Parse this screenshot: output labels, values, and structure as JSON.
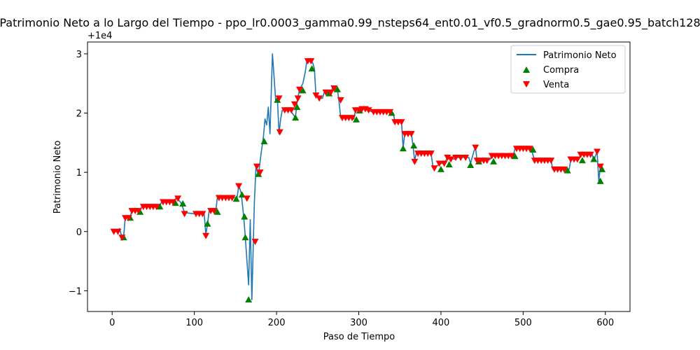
{
  "chart_data": {
    "type": "line",
    "title": "Patrimonio Neto a lo Largo del Tiempo - ppo_lr0.0003_gamma0.99_nsteps64_ent0.01_vf0.5_gradnorm0.5_gae0.95_batch128",
    "xlabel": "Paso de Tiempo",
    "ylabel": "Patrimonio Neto",
    "y_offset_label": "+1e4",
    "xlim": [
      -30,
      630
    ],
    "ylim": [
      -1.35,
      3.2
    ],
    "x_ticks": [
      0,
      100,
      200,
      300,
      400,
      500,
      600
    ],
    "x_tick_labels": [
      "0",
      "100",
      "200",
      "300",
      "400",
      "500",
      "600"
    ],
    "y_ticks": [
      -1,
      0,
      1,
      2,
      3
    ],
    "y_tick_labels": [
      "−1",
      "0",
      "1",
      "2",
      "3"
    ],
    "grid": false,
    "legend_position": "top-right",
    "colors": {
      "line": "#1f77b4",
      "buy": "#008000",
      "sell": "#ff0000"
    },
    "series": [
      {
        "name": "Patrimonio Neto",
        "kind": "line",
        "points": [
          [
            0,
            0.0
          ],
          [
            6,
            0.0
          ],
          [
            9,
            0.05
          ],
          [
            11,
            -0.05
          ],
          [
            14,
            -0.08
          ],
          [
            16,
            0.25
          ],
          [
            22,
            0.25
          ],
          [
            24,
            0.35
          ],
          [
            34,
            0.35
          ],
          [
            36,
            0.42
          ],
          [
            58,
            0.42
          ],
          [
            60,
            0.5
          ],
          [
            75,
            0.5
          ],
          [
            78,
            0.58
          ],
          [
            84,
            0.48
          ],
          [
            88,
            0.32
          ],
          [
            100,
            0.3
          ],
          [
            112,
            0.3
          ],
          [
            114,
            -0.05
          ],
          [
            116,
            0.12
          ],
          [
            118,
            0.35
          ],
          [
            126,
            0.35
          ],
          [
            128,
            0.57
          ],
          [
            152,
            0.57
          ],
          [
            154,
            0.78
          ],
          [
            157,
            0.65
          ],
          [
            160,
            0.25
          ],
          [
            162,
            -0.1
          ],
          [
            164,
            -0.5
          ],
          [
            166,
            -0.9
          ],
          [
            168,
            0.2
          ],
          [
            170,
            -1.15
          ],
          [
            173,
            0.5
          ],
          [
            175,
            1.1
          ],
          [
            178,
            0.95
          ],
          [
            181,
            1.3
          ],
          [
            184,
            1.6
          ],
          [
            186,
            1.9
          ],
          [
            188,
            1.8
          ],
          [
            190,
            2.1
          ],
          [
            192,
            1.65
          ],
          [
            195,
            3.0
          ],
          [
            197,
            2.6
          ],
          [
            199,
            2.2
          ],
          [
            201,
            2.25
          ],
          [
            203,
            1.65
          ],
          [
            205,
            1.9
          ],
          [
            207,
            2.05
          ],
          [
            217,
            2.05
          ],
          [
            219,
            2.0
          ],
          [
            223,
            1.92
          ],
          [
            225,
            2.2
          ],
          [
            228,
            2.4
          ],
          [
            232,
            2.5
          ],
          [
            235,
            2.7
          ],
          [
            237,
            2.9
          ],
          [
            244,
            2.85
          ],
          [
            246,
            2.75
          ],
          [
            248,
            2.3
          ],
          [
            252,
            2.25
          ],
          [
            256,
            2.25
          ],
          [
            258,
            2.35
          ],
          [
            266,
            2.35
          ],
          [
            268,
            2.42
          ],
          [
            274,
            2.4
          ],
          [
            276,
            2.2
          ],
          [
            278,
            1.92
          ],
          [
            292,
            1.92
          ],
          [
            294,
            1.9
          ],
          [
            296,
            2.05
          ],
          [
            302,
            2.05
          ],
          [
            304,
            2.07
          ],
          [
            312,
            2.05
          ],
          [
            316,
            2.02
          ],
          [
            340,
            2.02
          ],
          [
            342,
            2.0
          ],
          [
            344,
            1.85
          ],
          [
            352,
            1.85
          ],
          [
            354,
            1.42
          ],
          [
            356,
            1.65
          ],
          [
            364,
            1.65
          ],
          [
            366,
            1.45
          ],
          [
            368,
            1.2
          ],
          [
            370,
            1.32
          ],
          [
            388,
            1.32
          ],
          [
            390,
            1.12
          ],
          [
            392,
            1.07
          ],
          [
            394,
            1.1
          ],
          [
            400,
            1.15
          ],
          [
            404,
            1.15
          ],
          [
            408,
            1.25
          ],
          [
            416,
            1.22
          ],
          [
            420,
            1.25
          ],
          [
            434,
            1.25
          ],
          [
            436,
            1.15
          ],
          [
            440,
            1.35
          ],
          [
            442,
            1.42
          ],
          [
            444,
            1.2
          ],
          [
            456,
            1.2
          ],
          [
            460,
            1.22
          ],
          [
            462,
            1.28
          ],
          [
            488,
            1.28
          ],
          [
            490,
            1.4
          ],
          [
            506,
            1.4
          ],
          [
            510,
            1.38
          ],
          [
            514,
            1.2
          ],
          [
            534,
            1.2
          ],
          [
            536,
            1.05
          ],
          [
            556,
            1.05
          ],
          [
            558,
            1.22
          ],
          [
            568,
            1.22
          ],
          [
            570,
            1.3
          ],
          [
            584,
            1.3
          ],
          [
            586,
            1.2
          ],
          [
            590,
            1.35
          ],
          [
            592,
            0.85
          ],
          [
            594,
            1.1
          ],
          [
            596,
            1.05
          ]
        ]
      },
      {
        "name": "Compra",
        "kind": "scatter",
        "marker": "triangle-up",
        "points": [
          [
            14,
            -0.1
          ],
          [
            22,
            0.23
          ],
          [
            34,
            0.33
          ],
          [
            58,
            0.42
          ],
          [
            77,
            0.48
          ],
          [
            86,
            0.47
          ],
          [
            116,
            0.13
          ],
          [
            128,
            0.33
          ],
          [
            151,
            0.55
          ],
          [
            158,
            0.62
          ],
          [
            161,
            0.25
          ],
          [
            162,
            -0.1
          ],
          [
            166,
            -1.15
          ],
          [
            178,
            0.97
          ],
          [
            185,
            1.52
          ],
          [
            201,
            2.22
          ],
          [
            223,
            1.92
          ],
          [
            225,
            2.1
          ],
          [
            232,
            2.38
          ],
          [
            243,
            2.75
          ],
          [
            264,
            2.33
          ],
          [
            274,
            2.4
          ],
          [
            297,
            1.89
          ],
          [
            301,
            2.04
          ],
          [
            340,
            2.0
          ],
          [
            354,
            1.4
          ],
          [
            367,
            1.45
          ],
          [
            400,
            1.05
          ],
          [
            410,
            1.13
          ],
          [
            436,
            1.12
          ],
          [
            446,
            1.18
          ],
          [
            464,
            1.18
          ],
          [
            490,
            1.27
          ],
          [
            512,
            1.38
          ],
          [
            554,
            1.03
          ],
          [
            572,
            1.2
          ],
          [
            586,
            1.22
          ],
          [
            594,
            0.85
          ],
          [
            596,
            1.05
          ]
        ]
      },
      {
        "name": "Venta",
        "kind": "scatter",
        "marker": "triangle-down",
        "points": [
          [
            2,
            0.0
          ],
          [
            7,
            0.0
          ],
          [
            12,
            -0.1
          ],
          [
            16,
            0.23
          ],
          [
            20,
            0.23
          ],
          [
            24,
            0.35
          ],
          [
            28,
            0.35
          ],
          [
            32,
            0.35
          ],
          [
            38,
            0.42
          ],
          [
            42,
            0.42
          ],
          [
            46,
            0.42
          ],
          [
            50,
            0.42
          ],
          [
            54,
            0.42
          ],
          [
            62,
            0.5
          ],
          [
            66,
            0.5
          ],
          [
            70,
            0.5
          ],
          [
            74,
            0.5
          ],
          [
            80,
            0.56
          ],
          [
            88,
            0.3
          ],
          [
            102,
            0.3
          ],
          [
            106,
            0.3
          ],
          [
            110,
            0.3
          ],
          [
            114,
            -0.07
          ],
          [
            120,
            0.35
          ],
          [
            124,
            0.35
          ],
          [
            130,
            0.57
          ],
          [
            134,
            0.57
          ],
          [
            138,
            0.57
          ],
          [
            142,
            0.57
          ],
          [
            146,
            0.57
          ],
          [
            154,
            0.77
          ],
          [
            164,
            0.56
          ],
          [
            174,
            -0.17
          ],
          [
            176,
            1.1
          ],
          [
            180,
            1.0
          ],
          [
            203,
            2.25
          ],
          [
            204,
            1.68
          ],
          [
            210,
            2.05
          ],
          [
            214,
            2.05
          ],
          [
            218,
            2.05
          ],
          [
            222,
            2.15
          ],
          [
            226,
            2.25
          ],
          [
            228,
            2.4
          ],
          [
            238,
            2.88
          ],
          [
            242,
            2.88
          ],
          [
            248,
            2.3
          ],
          [
            252,
            2.25
          ],
          [
            260,
            2.35
          ],
          [
            266,
            2.35
          ],
          [
            270,
            2.42
          ],
          [
            278,
            2.22
          ],
          [
            280,
            1.92
          ],
          [
            284,
            1.92
          ],
          [
            288,
            1.92
          ],
          [
            292,
            1.92
          ],
          [
            296,
            2.05
          ],
          [
            300,
            2.05
          ],
          [
            304,
            2.07
          ],
          [
            308,
            2.07
          ],
          [
            312,
            2.05
          ],
          [
            318,
            2.02
          ],
          [
            322,
            2.02
          ],
          [
            326,
            2.02
          ],
          [
            330,
            2.02
          ],
          [
            334,
            2.02
          ],
          [
            338,
            2.02
          ],
          [
            344,
            1.85
          ],
          [
            348,
            1.85
          ],
          [
            352,
            1.85
          ],
          [
            356,
            1.65
          ],
          [
            360,
            1.65
          ],
          [
            364,
            1.65
          ],
          [
            368,
            1.18
          ],
          [
            372,
            1.32
          ],
          [
            376,
            1.32
          ],
          [
            380,
            1.32
          ],
          [
            384,
            1.32
          ],
          [
            388,
            1.32
          ],
          [
            392,
            1.07
          ],
          [
            398,
            1.15
          ],
          [
            404,
            1.15
          ],
          [
            408,
            1.25
          ],
          [
            412,
            1.22
          ],
          [
            418,
            1.25
          ],
          [
            424,
            1.25
          ],
          [
            430,
            1.25
          ],
          [
            442,
            1.42
          ],
          [
            444,
            1.2
          ],
          [
            448,
            1.2
          ],
          [
            452,
            1.2
          ],
          [
            456,
            1.2
          ],
          [
            462,
            1.28
          ],
          [
            466,
            1.28
          ],
          [
            470,
            1.28
          ],
          [
            474,
            1.28
          ],
          [
            478,
            1.28
          ],
          [
            482,
            1.28
          ],
          [
            486,
            1.28
          ],
          [
            492,
            1.4
          ],
          [
            496,
            1.4
          ],
          [
            500,
            1.4
          ],
          [
            504,
            1.4
          ],
          [
            508,
            1.4
          ],
          [
            514,
            1.2
          ],
          [
            518,
            1.2
          ],
          [
            522,
            1.2
          ],
          [
            526,
            1.2
          ],
          [
            530,
            1.2
          ],
          [
            534,
            1.2
          ],
          [
            538,
            1.05
          ],
          [
            542,
            1.05
          ],
          [
            546,
            1.05
          ],
          [
            550,
            1.05
          ],
          [
            558,
            1.22
          ],
          [
            562,
            1.22
          ],
          [
            566,
            1.22
          ],
          [
            570,
            1.3
          ],
          [
            574,
            1.3
          ],
          [
            578,
            1.3
          ],
          [
            582,
            1.3
          ],
          [
            590,
            1.35
          ],
          [
            594,
            1.1
          ]
        ]
      }
    ]
  }
}
